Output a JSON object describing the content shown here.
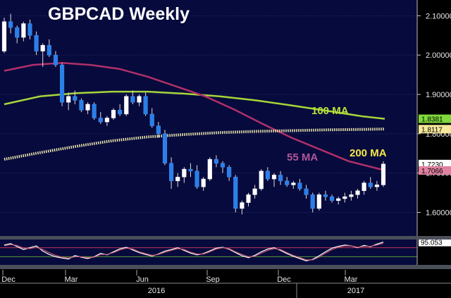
{
  "chart_data": {
    "type": "candlestick",
    "title": "GBPCAD Weekly",
    "y_ticks": [
      "2.10000",
      "2.00000",
      "1.90000",
      "1.80000",
      "1.70000",
      "1.60000"
    ],
    "x_ticks": [
      "Dec",
      "Mar",
      "Jun",
      "Sep",
      "Dec",
      "Mar"
    ],
    "year_labels": [
      "2016",
      "2017"
    ],
    "ylim": [
      1.54,
      2.14
    ],
    "grid": true,
    "price_tags": [
      {
        "value": 1.8381,
        "label": "1.8381",
        "color": "#7fd93a"
      },
      {
        "value": 1.8117,
        "label": "1.8117",
        "color": "#f5e89a"
      },
      {
        "value": 1.723,
        "label": "1.7230",
        "color": "#ffffff"
      },
      {
        "value": 1.7066,
        "label": "1.7066",
        "color": "#e080a0"
      }
    ],
    "ma_labels": [
      {
        "text": "100 MA",
        "color": "#b6e23a"
      },
      {
        "text": "55 MA",
        "color": "#b0559a"
      },
      {
        "text": "200 MA",
        "color": "#f7e84a"
      }
    ],
    "moving_averages": [
      {
        "key": "ma100",
        "color": "#a6d63a",
        "points": [
          [
            0,
            1.875
          ],
          [
            10,
            1.895
          ],
          [
            20,
            1.903
          ],
          [
            30,
            1.907
          ],
          [
            40,
            1.907
          ],
          [
            50,
            1.902
          ],
          [
            60,
            1.895
          ],
          [
            70,
            1.885
          ],
          [
            80,
            1.872
          ],
          [
            90,
            1.858
          ],
          [
            100,
            1.844
          ],
          [
            106,
            1.838
          ]
        ]
      },
      {
        "key": "ma55",
        "color": "#b0306a",
        "points": [
          [
            0,
            1.96
          ],
          [
            8,
            1.975
          ],
          [
            16,
            1.98
          ],
          [
            24,
            1.975
          ],
          [
            32,
            1.965
          ],
          [
            40,
            1.945
          ],
          [
            48,
            1.92
          ],
          [
            56,
            1.895
          ],
          [
            64,
            1.862
          ],
          [
            72,
            1.825
          ],
          [
            80,
            1.79
          ],
          [
            88,
            1.76
          ],
          [
            96,
            1.73
          ],
          [
            106,
            1.707
          ]
        ]
      },
      {
        "key": "ma200",
        "color": "#f0ecb0",
        "points": [
          [
            0,
            1.735
          ],
          [
            10,
            1.752
          ],
          [
            20,
            1.768
          ],
          [
            30,
            1.782
          ],
          [
            40,
            1.792
          ],
          [
            50,
            1.798
          ],
          [
            60,
            1.803
          ],
          [
            70,
            1.806
          ],
          [
            80,
            1.808
          ],
          [
            90,
            1.81
          ],
          [
            100,
            1.811
          ],
          [
            106,
            1.812
          ]
        ]
      }
    ],
    "candles": [
      [
        2.01,
        2.095,
        2.005,
        2.085
      ],
      [
        2.085,
        2.105,
        2.055,
        2.07
      ],
      [
        2.07,
        2.075,
        2.03,
        2.045
      ],
      [
        2.045,
        2.085,
        2.035,
        2.08
      ],
      [
        2.08,
        2.09,
        2.04,
        2.05
      ],
      [
        2.05,
        2.06,
        2.0,
        2.01
      ],
      [
        2.01,
        2.03,
        1.97,
        2.025
      ],
      [
        2.025,
        2.04,
        1.995,
        2.0
      ],
      [
        2.0,
        2.01,
        1.97,
        1.975
      ],
      [
        1.975,
        1.98,
        1.87,
        1.88
      ],
      [
        1.88,
        1.905,
        1.86,
        1.895
      ],
      [
        1.895,
        1.91,
        1.875,
        1.885
      ],
      [
        1.885,
        1.89,
        1.855,
        1.86
      ],
      [
        1.86,
        1.88,
        1.85,
        1.875
      ],
      [
        1.875,
        1.88,
        1.835,
        1.84
      ],
      [
        1.84,
        1.855,
        1.825,
        1.83
      ],
      [
        1.83,
        1.845,
        1.82,
        1.84
      ],
      [
        1.84,
        1.865,
        1.835,
        1.86
      ],
      [
        1.86,
        1.875,
        1.845,
        1.85
      ],
      [
        1.85,
        1.9,
        1.845,
        1.895
      ],
      [
        1.895,
        1.91,
        1.875,
        1.88
      ],
      [
        1.88,
        1.9,
        1.87,
        1.895
      ],
      [
        1.895,
        1.905,
        1.845,
        1.85
      ],
      [
        1.85,
        1.865,
        1.815,
        1.82
      ],
      [
        1.82,
        1.83,
        1.79,
        1.8
      ],
      [
        1.8,
        1.81,
        1.72,
        1.725
      ],
      [
        1.725,
        1.74,
        1.66,
        1.68
      ],
      [
        1.68,
        1.7,
        1.665,
        1.69
      ],
      [
        1.69,
        1.715,
        1.675,
        1.71
      ],
      [
        1.71,
        1.725,
        1.69,
        1.705
      ],
      [
        1.705,
        1.72,
        1.66,
        1.665
      ],
      [
        1.665,
        1.69,
        1.655,
        1.685
      ],
      [
        1.685,
        1.74,
        1.68,
        1.735
      ],
      [
        1.735,
        1.745,
        1.715,
        1.725
      ],
      [
        1.725,
        1.73,
        1.7,
        1.715
      ],
      [
        1.715,
        1.72,
        1.68,
        1.69
      ],
      [
        1.69,
        1.695,
        1.6,
        1.61
      ],
      [
        1.61,
        1.63,
        1.595,
        1.625
      ],
      [
        1.625,
        1.65,
        1.615,
        1.645
      ],
      [
        1.645,
        1.67,
        1.635,
        1.66
      ],
      [
        1.66,
        1.71,
        1.655,
        1.705
      ],
      [
        1.705,
        1.715,
        1.68,
        1.685
      ],
      [
        1.685,
        1.7,
        1.665,
        1.695
      ],
      [
        1.695,
        1.705,
        1.67,
        1.68
      ],
      [
        1.68,
        1.69,
        1.665,
        1.67
      ],
      [
        1.67,
        1.68,
        1.66,
        1.675
      ],
      [
        1.675,
        1.685,
        1.655,
        1.66
      ],
      [
        1.66,
        1.67,
        1.635,
        1.645
      ],
      [
        1.645,
        1.65,
        1.6,
        1.61
      ],
      [
        1.61,
        1.65,
        1.605,
        1.645
      ],
      [
        1.645,
        1.655,
        1.63,
        1.64
      ],
      [
        1.64,
        1.645,
        1.625,
        1.63
      ],
      [
        1.63,
        1.64,
        1.62,
        1.635
      ],
      [
        1.635,
        1.65,
        1.625,
        1.64
      ],
      [
        1.64,
        1.655,
        1.63,
        1.645
      ],
      [
        1.645,
        1.66,
        1.635,
        1.655
      ],
      [
        1.655,
        1.68,
        1.645,
        1.675
      ],
      [
        1.675,
        1.69,
        1.66,
        1.665
      ],
      [
        1.665,
        1.68,
        1.655,
        1.67
      ],
      [
        1.67,
        1.73,
        1.665,
        1.723
      ]
    ],
    "oscillator": {
      "ylim": [
        0,
        100
      ],
      "value_label": "95.053",
      "tag_color": "#ffffff",
      "series": [
        {
          "key": "fast",
          "color": "#ffffff",
          "values": [
            82,
            88,
            75,
            62,
            70,
            78,
            55,
            40,
            30,
            24,
            20,
            35,
            28,
            22,
            30,
            45,
            38,
            52,
            65,
            72,
            60,
            48,
            40,
            33,
            42,
            55,
            62,
            70,
            58,
            46,
            38,
            44,
            56,
            68,
            72,
            63,
            48,
            34,
            26,
            36,
            52,
            64,
            70,
            58,
            44,
            32,
            22,
            12,
            18,
            34,
            52,
            68,
            76,
            82,
            78,
            70,
            80,
            74,
            86,
            95
          ]
        },
        {
          "key": "slow",
          "color": "#c05a70",
          "values": [
            78,
            84,
            80,
            68,
            66,
            72,
            62,
            48,
            36,
            28,
            24,
            30,
            30,
            26,
            28,
            40,
            40,
            48,
            60,
            68,
            64,
            52,
            44,
            36,
            40,
            50,
            58,
            66,
            62,
            50,
            42,
            42,
            52,
            64,
            70,
            66,
            52,
            40,
            30,
            32,
            46,
            58,
            66,
            62,
            48,
            36,
            26,
            16,
            16,
            28,
            46,
            62,
            72,
            78,
            78,
            72,
            76,
            76,
            82,
            90
          ]
        }
      ]
    }
  }
}
